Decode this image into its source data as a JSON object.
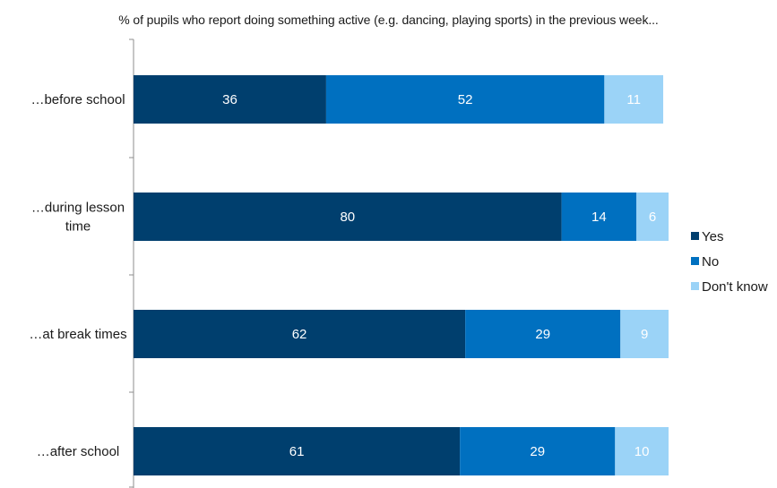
{
  "chart_data": {
    "type": "bar",
    "orientation": "horizontal",
    "stacked": true,
    "title": "% of pupils who report doing something active (e.g. dancing, playing sports) in the previous week...",
    "categories": [
      [
        "…before school"
      ],
      [
        "…during lesson",
        "time"
      ],
      [
        "…at break times"
      ],
      [
        "…after school"
      ]
    ],
    "series": [
      {
        "name": "Yes",
        "color": "#003f6e",
        "values": [
          36,
          80,
          62,
          61
        ]
      },
      {
        "name": "No",
        "color": "#0070c0",
        "values": [
          52,
          14,
          29,
          29
        ]
      },
      {
        "name": "Don't know",
        "color": "#9bd3f7",
        "values": [
          11,
          6,
          9,
          10
        ]
      }
    ],
    "xlim": [
      0,
      100
    ],
    "grid": false,
    "legend_position": "right"
  }
}
